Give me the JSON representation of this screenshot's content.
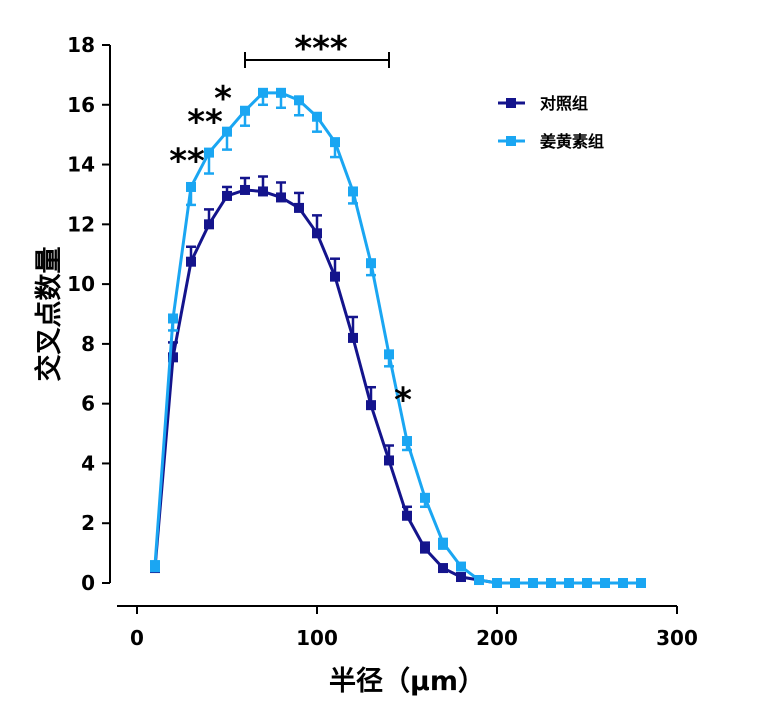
{
  "chart_data": {
    "type": "line",
    "title": "",
    "xlabel": "半径（μm）",
    "ylabel": "交叉点数量",
    "xlim": [
      0,
      300
    ],
    "ylim": [
      0,
      18
    ],
    "xticks": [
      0,
      100,
      200,
      300
    ],
    "yticks": [
      0,
      2,
      4,
      6,
      8,
      10,
      12,
      14,
      16,
      18
    ],
    "grid": false,
    "legend_placement": "top-right",
    "x": [
      10,
      20,
      30,
      40,
      50,
      60,
      70,
      80,
      90,
      100,
      110,
      120,
      130,
      140,
      150,
      160,
      170,
      180,
      190,
      200,
      210,
      220,
      230,
      240,
      250,
      260,
      270,
      280
    ],
    "series": [
      {
        "name": "对照组",
        "color": "#14148c",
        "values": [
          0.5,
          7.55,
          10.75,
          12.0,
          12.95,
          13.15,
          13.1,
          12.9,
          12.55,
          11.7,
          10.25,
          8.2,
          5.95,
          4.1,
          2.25,
          1.15,
          0.5,
          0.2,
          0.1,
          0,
          0,
          0,
          0,
          0,
          0,
          0,
          0,
          0
        ],
        "errors": [
          0.1,
          0.5,
          0.5,
          0.5,
          0.3,
          0.4,
          0.5,
          0.5,
          0.5,
          0.6,
          0.6,
          0.7,
          0.6,
          0.5,
          0.3,
          0.2,
          0.1,
          0.1,
          0.05,
          0,
          0,
          0,
          0,
          0,
          0,
          0,
          0,
          0
        ]
      },
      {
        "name": "姜黄素组",
        "color": "#1aa6f2",
        "values": [
          0.6,
          8.85,
          13.25,
          14.4,
          15.1,
          15.8,
          16.4,
          16.4,
          16.15,
          15.6,
          14.75,
          13.1,
          10.7,
          7.65,
          4.75,
          2.85,
          1.35,
          0.55,
          0.1,
          0,
          0,
          0,
          0,
          0,
          0,
          0,
          0,
          0
        ],
        "errors": [
          0.2,
          0.4,
          0.6,
          0.7,
          0.6,
          0.5,
          0.4,
          0.5,
          0.5,
          0.5,
          0.5,
          0.4,
          0.4,
          0.4,
          0.3,
          0.3,
          0.2,
          0.1,
          0.05,
          0,
          0,
          0,
          0,
          0,
          0,
          0,
          0,
          0
        ]
      }
    ],
    "annotations": [
      {
        "text": "**",
        "x": 30,
        "y": 14.2
      },
      {
        "text": "**",
        "x": 40,
        "y": 15.5
      },
      {
        "text": "*",
        "x": 50,
        "y": 16.3
      },
      {
        "text": "***",
        "x": 100,
        "y": 17.9,
        "bracket": [
          60,
          140
        ]
      },
      {
        "text": "*",
        "x": 150,
        "y": 6.2
      }
    ]
  }
}
